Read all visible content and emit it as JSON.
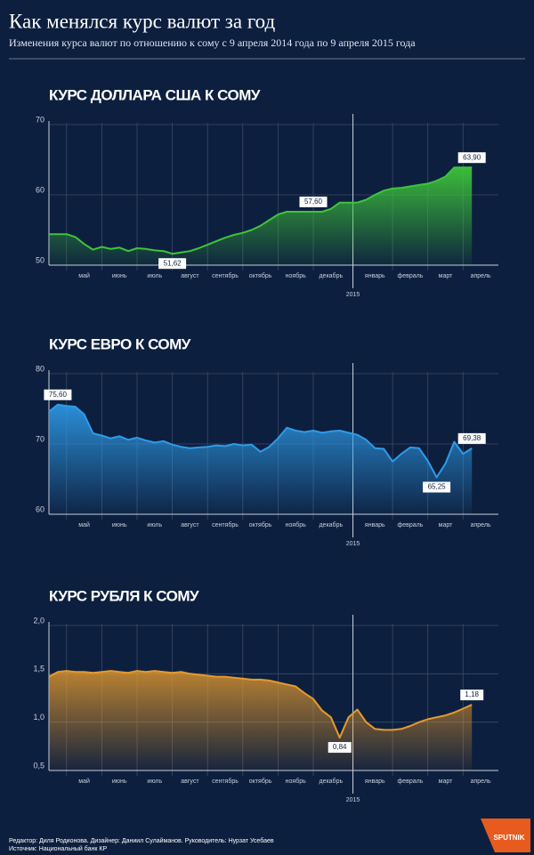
{
  "title": "Как менялся курс валют за год",
  "subtitle": "Изменения курса валют по отношению к сому с 9 апреля 2014 года по 9 апреля 2015 года",
  "footer": [
    "Редактор: Диля Родионова. Дизайнер: Даниил Сулайманов. Руководитель: Нурзат Усебаев",
    "Источник: Национальный банк КР"
  ],
  "logo": "SPUTNIK",
  "chart_data": [
    {
      "type": "area",
      "title": "КУРС ДОЛЛАРА США К СОМУ",
      "color": "#3ec43a",
      "year_label": "2015",
      "categories": [
        null,
        null,
        null,
        null,
        "май",
        null,
        null,
        null,
        "июнь",
        null,
        null,
        null,
        "июль",
        null,
        null,
        null,
        "август",
        null,
        null,
        null,
        "сентябрь",
        null,
        null,
        null,
        "октябрь",
        null,
        null,
        null,
        "ноябрь",
        null,
        null,
        null,
        "декабрь",
        null,
        null,
        null,
        null,
        "январь",
        null,
        null,
        null,
        "февраль",
        null,
        null,
        null,
        "март",
        null,
        null,
        null,
        "апрель"
      ],
      "values": [
        54.4,
        54.4,
        54.4,
        54.0,
        53.0,
        52.2,
        52.6,
        52.3,
        52.5,
        52.0,
        52.4,
        52.3,
        52.1,
        52.0,
        51.62,
        51.8,
        52.0,
        52.4,
        52.9,
        53.4,
        53.9,
        54.3,
        54.6,
        55.0,
        55.6,
        56.4,
        57.2,
        57.6,
        57.6,
        57.6,
        57.6,
        57.6,
        58.0,
        58.9,
        58.9,
        58.9,
        59.3,
        60.0,
        60.6,
        60.9,
        61.0,
        61.2,
        61.4,
        61.6,
        62.0,
        62.6,
        63.9,
        63.9,
        63.9,
        null
      ],
      "value_labels": [
        null,
        null,
        null,
        null,
        null,
        null,
        null,
        null,
        null,
        null,
        null,
        null,
        null,
        null,
        "51,62",
        null,
        null,
        null,
        null,
        null,
        null,
        null,
        null,
        null,
        null,
        null,
        null,
        null,
        null,
        null,
        "57,60",
        null,
        null,
        null,
        null,
        null,
        null,
        null,
        null,
        null,
        null,
        null,
        null,
        null,
        null,
        null,
        null,
        null,
        "63,90",
        null
      ],
      "ylim": [
        50,
        70
      ],
      "yticks": [
        50,
        60,
        70
      ],
      "grid": true
    },
    {
      "type": "area",
      "title": "КУРС ЕВРО К СОМУ",
      "color": "#2e9be8",
      "year_label": "2015",
      "categories": [
        null,
        null,
        null,
        null,
        "май",
        null,
        null,
        null,
        "июнь",
        null,
        null,
        null,
        "июль",
        null,
        null,
        null,
        "август",
        null,
        null,
        null,
        "сентябрь",
        null,
        null,
        null,
        "октябрь",
        null,
        null,
        null,
        "ноябрь",
        null,
        null,
        null,
        "декабрь",
        null,
        null,
        null,
        null,
        "январь",
        null,
        null,
        null,
        "февраль",
        null,
        null,
        null,
        "март",
        null,
        null,
        null,
        "апрель"
      ],
      "values": [
        74.6,
        75.6,
        75.4,
        75.3,
        74.2,
        71.5,
        71.2,
        70.8,
        71.1,
        70.6,
        70.9,
        70.5,
        70.2,
        70.4,
        69.9,
        69.6,
        69.4,
        69.5,
        69.6,
        69.8,
        69.7,
        70.0,
        69.8,
        69.9,
        68.9,
        69.6,
        70.8,
        72.3,
        71.9,
        71.7,
        71.9,
        71.6,
        71.8,
        71.9,
        71.6,
        71.3,
        70.6,
        69.4,
        69.3,
        67.5,
        68.6,
        69.5,
        69.4,
        67.6,
        65.25,
        67.2,
        70.3,
        68.6,
        69.38,
        null
      ],
      "value_labels": [
        null,
        "75,60",
        null,
        null,
        null,
        null,
        null,
        null,
        null,
        null,
        null,
        null,
        null,
        null,
        null,
        null,
        null,
        null,
        null,
        null,
        null,
        null,
        null,
        null,
        null,
        null,
        null,
        null,
        null,
        null,
        null,
        null,
        null,
        null,
        null,
        null,
        null,
        null,
        null,
        null,
        null,
        null,
        null,
        null,
        "65,25",
        null,
        null,
        null,
        "69,38",
        null
      ],
      "ylim": [
        60,
        80
      ],
      "yticks": [
        60,
        70,
        80
      ],
      "grid": true
    },
    {
      "type": "area",
      "title": "КУРС РУБЛЯ К СОМУ",
      "color": "#e59a2e",
      "year_label": "2015",
      "categories": [
        null,
        null,
        null,
        null,
        "май",
        null,
        null,
        null,
        "июнь",
        null,
        null,
        null,
        "июль",
        null,
        null,
        null,
        "август",
        null,
        null,
        null,
        "сентябрь",
        null,
        null,
        null,
        "октябрь",
        null,
        null,
        null,
        "ноябрь",
        null,
        null,
        null,
        "декабрь",
        null,
        null,
        null,
        null,
        "январь",
        null,
        null,
        null,
        "февраль",
        null,
        null,
        null,
        "март",
        null,
        null,
        null,
        "апрель"
      ],
      "values": [
        1.47,
        1.52,
        1.53,
        1.52,
        1.52,
        1.51,
        1.52,
        1.53,
        1.52,
        1.51,
        1.53,
        1.52,
        1.53,
        1.52,
        1.51,
        1.52,
        1.5,
        1.49,
        1.48,
        1.47,
        1.47,
        1.46,
        1.45,
        1.44,
        1.44,
        1.43,
        1.41,
        1.39,
        1.37,
        1.3,
        1.24,
        1.12,
        1.05,
        0.84,
        1.05,
        1.13,
        1.0,
        0.93,
        0.92,
        0.92,
        0.93,
        0.96,
        1.0,
        1.03,
        1.05,
        1.07,
        1.1,
        1.14,
        1.18,
        null
      ],
      "value_labels": [
        null,
        null,
        null,
        null,
        null,
        null,
        null,
        null,
        null,
        null,
        null,
        null,
        null,
        null,
        null,
        null,
        null,
        null,
        null,
        null,
        null,
        null,
        null,
        null,
        null,
        null,
        null,
        null,
        null,
        null,
        null,
        null,
        null,
        "0,84",
        null,
        null,
        null,
        null,
        null,
        null,
        null,
        null,
        null,
        null,
        null,
        null,
        null,
        null,
        "1,18",
        null
      ],
      "ylim": [
        0.5,
        2.0
      ],
      "yticks": [
        {
          "value": 0.5,
          "label": "0,5"
        },
        {
          "value": 1.0,
          "label": "1,0"
        },
        {
          "value": 1.5,
          "label": "1,5"
        },
        {
          "value": 2.0,
          "label": "2,0"
        }
      ],
      "grid": true
    }
  ]
}
